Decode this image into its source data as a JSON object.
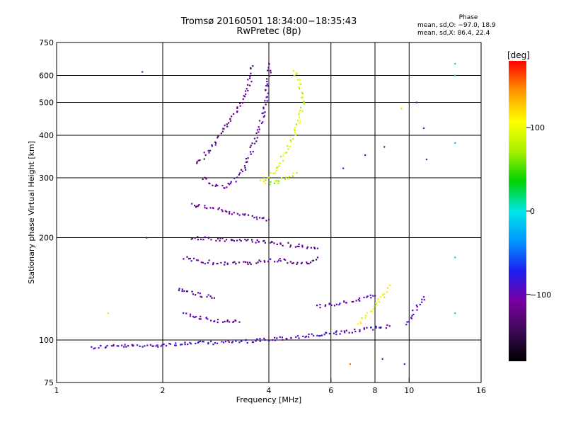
{
  "title": {
    "line1": "Tromsø 20160501 18:34:00−18:35:43",
    "line2": "RwPretec (8p)"
  },
  "phase_stats": {
    "header": "Phase",
    "line_o": "mean, sd,O: −97.0, 18.9",
    "line_x": "mean, sd,X:  86.4, 22.4"
  },
  "colors": {
    "background": "#ffffff",
    "grid": "#000000",
    "colormap": [
      "#000000",
      "#3c0a55",
      "#7800a0",
      "#1e1ef0",
      "#0096ff",
      "#00e6e6",
      "#00d200",
      "#aaf000",
      "#ffff00",
      "#ff9600",
      "#ff0000"
    ]
  },
  "chart_data": {
    "type": "scatter",
    "title": "Tromsø 20160501 18:34:00−18:35:43",
    "subtitle": "RwPretec (8p)",
    "xlabel": "Frequency [MHz]",
    "ylabel": "Stationary phase Virtual Height [km]",
    "x_scale": "log",
    "y_scale": "log",
    "xlim": [
      1,
      16
    ],
    "ylim": [
      75,
      750
    ],
    "x_ticks": [
      1,
      2,
      4,
      6,
      8,
      10,
      16
    ],
    "x_tick_labels": [
      "1",
      "2",
      "4",
      "6",
      "8",
      "10",
      "16"
    ],
    "y_ticks": [
      75,
      100,
      200,
      300,
      400,
      500,
      600,
      750
    ],
    "y_tick_labels": [
      "75",
      "100",
      "200",
      "300",
      "400",
      "500",
      "600",
      "750"
    ],
    "x_grid": [
      2,
      4,
      6,
      8,
      10
    ],
    "y_grid": [
      100,
      200,
      300,
      400,
      500,
      600
    ],
    "grid": true,
    "colorbar": {
      "label": "[deg]",
      "range": [
        -180,
        180
      ],
      "ticks": [
        100,
        0,
        -100
      ],
      "tick_labels": [
        "100",
        "0",
        "−100"
      ]
    },
    "traces": [
      {
        "name": "",
        "phase": -95,
        "points": [
          [
            1.25,
            95
          ],
          [
            1.4,
            96
          ],
          [
            1.6,
            96
          ],
          [
            1.8,
            96
          ],
          [
            2.0,
            97
          ],
          [
            2.3,
            97.5
          ],
          [
            2.6,
            98
          ],
          [
            3.0,
            98.5
          ],
          [
            3.4,
            99
          ],
          [
            3.8,
            100
          ],
          [
            4.3,
            101
          ],
          [
            4.8,
            102
          ],
          [
            5.3,
            103
          ],
          [
            5.8,
            104
          ],
          [
            6.3,
            105
          ],
          [
            6.8,
            106
          ],
          [
            7.3,
            107
          ],
          [
            7.8,
            108
          ],
          [
            8.3,
            109
          ],
          [
            8.8,
            110
          ]
        ]
      },
      {
        "name": "",
        "phase": -100,
        "points": [
          [
            2.3,
            120
          ],
          [
            2.5,
            117
          ],
          [
            2.7,
            115
          ],
          [
            2.9,
            114
          ],
          [
            3.1,
            113
          ],
          [
            3.3,
            113
          ]
        ]
      },
      {
        "name": "",
        "phase": -110,
        "points": [
          [
            2.2,
            142
          ],
          [
            2.4,
            138
          ],
          [
            2.6,
            135
          ],
          [
            2.8,
            133
          ]
        ]
      },
      {
        "name": "",
        "phase": -115,
        "points": [
          [
            2.3,
            175
          ],
          [
            2.6,
            170
          ],
          [
            3.0,
            168
          ],
          [
            3.4,
            168
          ],
          [
            3.8,
            170
          ],
          [
            4.3,
            172
          ],
          [
            4.8,
            168
          ],
          [
            5.2,
            168
          ],
          [
            5.5,
            175
          ]
        ]
      },
      {
        "name": "",
        "phase": -115,
        "points": [
          [
            2.4,
            200
          ],
          [
            2.7,
            198
          ],
          [
            3.1,
            197
          ],
          [
            3.5,
            196
          ],
          [
            3.9,
            195
          ],
          [
            4.3,
            192
          ],
          [
            4.7,
            190
          ],
          [
            5.1,
            188
          ],
          [
            5.5,
            186
          ]
        ]
      },
      {
        "name": "",
        "phase": -110,
        "points": [
          [
            2.4,
            250
          ],
          [
            2.7,
            245
          ],
          [
            3.0,
            240
          ],
          [
            3.3,
            235
          ],
          [
            3.6,
            230
          ],
          [
            4.0,
            226
          ]
        ]
      },
      {
        "name": "",
        "phase": -110,
        "points": [
          [
            2.6,
            300
          ],
          [
            2.8,
            285
          ],
          [
            3.0,
            282
          ],
          [
            3.2,
            295
          ],
          [
            3.4,
            320
          ],
          [
            3.6,
            370
          ],
          [
            3.8,
            430
          ],
          [
            3.9,
            500
          ],
          [
            4.0,
            580
          ],
          [
            4.0,
            650
          ]
        ]
      },
      {
        "name": "",
        "phase": -120,
        "points": [
          [
            2.5,
            330
          ],
          [
            2.7,
            360
          ],
          [
            2.9,
            400
          ],
          [
            3.1,
            440
          ],
          [
            3.3,
            490
          ],
          [
            3.5,
            560
          ],
          [
            3.6,
            640
          ]
        ]
      },
      {
        "name": "",
        "phase": 90,
        "points": [
          [
            3.9,
            300
          ],
          [
            4.1,
            310
          ],
          [
            4.3,
            330
          ],
          [
            4.5,
            360
          ],
          [
            4.7,
            400
          ],
          [
            4.9,
            450
          ],
          [
            5.0,
            500
          ],
          [
            4.9,
            560
          ],
          [
            4.7,
            620
          ]
        ]
      },
      {
        "name": "",
        "phase": 80,
        "points": [
          [
            3.8,
            295
          ],
          [
            4.0,
            290
          ],
          [
            4.2,
            292
          ],
          [
            4.5,
            300
          ],
          [
            4.8,
            310
          ]
        ]
      },
      {
        "name": "",
        "phase": -100,
        "points": [
          [
            5.5,
            125
          ],
          [
            6.2,
            128
          ],
          [
            6.8,
            130
          ],
          [
            7.4,
            132
          ],
          [
            8.0,
            135
          ]
        ]
      },
      {
        "name": "",
        "phase": 100,
        "points": [
          [
            7.2,
            112
          ],
          [
            7.6,
            118
          ],
          [
            8.0,
            125
          ],
          [
            8.4,
            135
          ],
          [
            8.8,
            145
          ]
        ]
      },
      {
        "name": "",
        "phase": -95,
        "points": [
          [
            9.8,
            112
          ],
          [
            10.2,
            118
          ],
          [
            10.6,
            126
          ],
          [
            11.0,
            134
          ]
        ]
      }
    ],
    "scattered_points": [
      {
        "x": 1.75,
        "y": 615,
        "phase": -100
      },
      {
        "x": 1.8,
        "y": 200,
        "phase": -130
      },
      {
        "x": 1.4,
        "y": 120,
        "phase": 120
      },
      {
        "x": 6.5,
        "y": 320,
        "phase": -90
      },
      {
        "x": 7.5,
        "y": 350,
        "phase": -80
      },
      {
        "x": 8.5,
        "y": 370,
        "phase": -100
      },
      {
        "x": 9.5,
        "y": 480,
        "phase": 120
      },
      {
        "x": 10.5,
        "y": 500,
        "phase": -110
      },
      {
        "x": 11.0,
        "y": 420,
        "phase": -100
      },
      {
        "x": 11.2,
        "y": 340,
        "phase": -100
      },
      {
        "x": 13.5,
        "y": 650,
        "phase": -10
      },
      {
        "x": 13.5,
        "y": 600,
        "phase": -10
      },
      {
        "x": 13.5,
        "y": 380,
        "phase": -20
      },
      {
        "x": 13.5,
        "y": 175,
        "phase": -10
      },
      {
        "x": 13.5,
        "y": 120,
        "phase": -10
      },
      {
        "x": 8.4,
        "y": 88,
        "phase": -100
      },
      {
        "x": 6.8,
        "y": 85,
        "phase": 150
      },
      {
        "x": 9.7,
        "y": 85,
        "phase": -100
      }
    ]
  }
}
